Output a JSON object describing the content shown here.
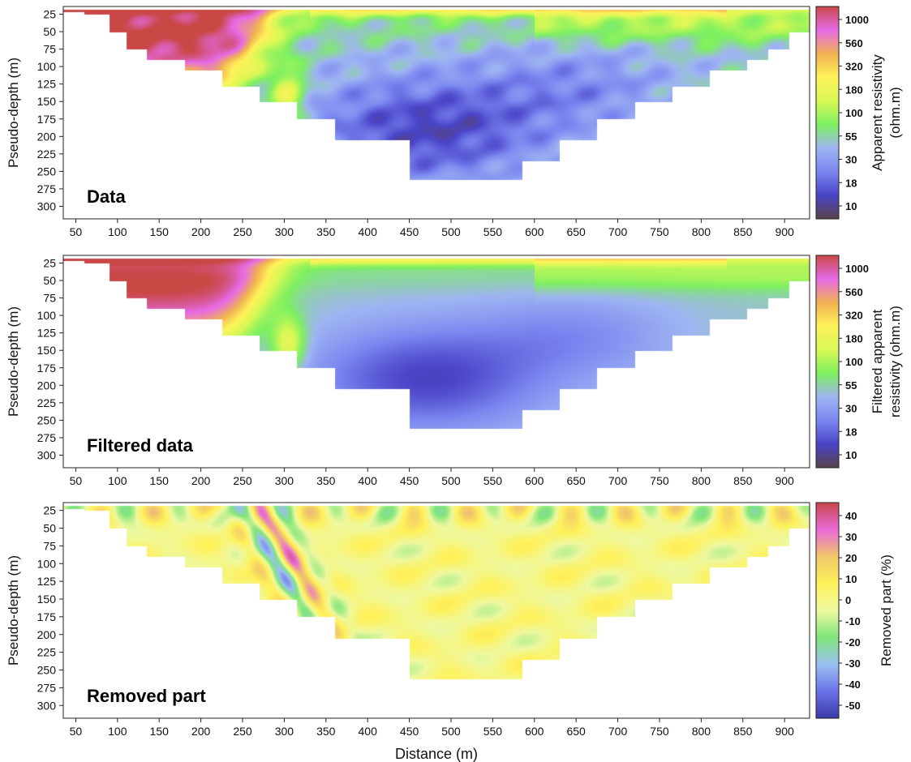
{
  "chart_data": [
    {
      "type": "heatmap",
      "panel_label": "Data",
      "xlabel": "",
      "ylabel": "Pseudo-depth (m)",
      "colorbar": {
        "label_lines": [
          "Apparent resistivity",
          "(ohm.m)"
        ],
        "scale": "log",
        "ticks": [
          "1000",
          "560",
          "320",
          "180",
          "100",
          "55",
          "30",
          "18",
          "10"
        ],
        "values": [
          1000,
          560,
          320,
          180,
          100,
          55,
          30,
          18,
          10
        ]
      },
      "x_ticks": [
        "50",
        "100",
        "150",
        "200",
        "250",
        "300",
        "350",
        "400",
        "450",
        "500",
        "550",
        "600",
        "650",
        "700",
        "750",
        "800",
        "850",
        "900"
      ],
      "y_ticks": [
        "25",
        "50",
        "75",
        "100",
        "125",
        "150",
        "175",
        "200",
        "225",
        "250",
        "275",
        "300"
      ],
      "xlim": [
        35,
        930
      ],
      "ylim": [
        14,
        318
      ],
      "y_inverted": true,
      "field": "resistivity"
    },
    {
      "type": "heatmap",
      "panel_label": "Filtered data",
      "xlabel": "",
      "ylabel": "Pseudo-depth (m)",
      "colorbar": {
        "label_lines": [
          "Filtered apparent",
          "resistivity (ohm.m)"
        ],
        "scale": "log",
        "ticks": [
          "1000",
          "560",
          "320",
          "180",
          "100",
          "55",
          "30",
          "18",
          "10"
        ],
        "values": [
          1000,
          560,
          320,
          180,
          100,
          55,
          30,
          18,
          10
        ]
      },
      "x_ticks": [
        "50",
        "100",
        "150",
        "200",
        "250",
        "300",
        "350",
        "400",
        "450",
        "500",
        "550",
        "600",
        "650",
        "700",
        "750",
        "800",
        "850",
        "900"
      ],
      "y_ticks": [
        "25",
        "50",
        "75",
        "100",
        "125",
        "150",
        "175",
        "200",
        "225",
        "250",
        "275",
        "300"
      ],
      "xlim": [
        35,
        930
      ],
      "ylim": [
        14,
        318
      ],
      "y_inverted": true,
      "field": "filtered"
    },
    {
      "type": "heatmap",
      "panel_label": "Removed part",
      "xlabel": "Distance (m)",
      "ylabel": "Pseudo-depth (m)",
      "colorbar": {
        "label_lines": [
          "Removed part (%)"
        ],
        "scale": "linear",
        "ticks": [
          "40",
          "30",
          "20",
          "10",
          "0",
          "-10",
          "-20",
          "-30",
          "-40",
          "-50"
        ],
        "values": [
          40,
          30,
          20,
          10,
          0,
          -10,
          -20,
          -30,
          -40,
          -50
        ]
      },
      "x_ticks": [
        "50",
        "100",
        "150",
        "200",
        "250",
        "300",
        "350",
        "400",
        "450",
        "500",
        "550",
        "600",
        "650",
        "700",
        "750",
        "800",
        "850",
        "900"
      ],
      "y_ticks": [
        "25",
        "50",
        "75",
        "100",
        "125",
        "150",
        "175",
        "200",
        "225",
        "250",
        "275",
        "300"
      ],
      "xlim": [
        35,
        930
      ],
      "ylim": [
        14,
        318
      ],
      "y_inverted": true,
      "field": "removed"
    }
  ],
  "colors": {
    "resistivity_scale": [
      "#58424a",
      "#4a44c8",
      "#7a86f0",
      "#9fb4f2",
      "#7df060",
      "#d8f855",
      "#fff25a",
      "#f1b252",
      "#e66ae8",
      "#c94846"
    ],
    "removed_scale": [
      "#3b3aa8",
      "#6b72e8",
      "#9ac0f0",
      "#7fe67a",
      "#eef8a0",
      "#fff15a",
      "#f1c76a",
      "#ea6ad8",
      "#c8474c"
    ]
  }
}
